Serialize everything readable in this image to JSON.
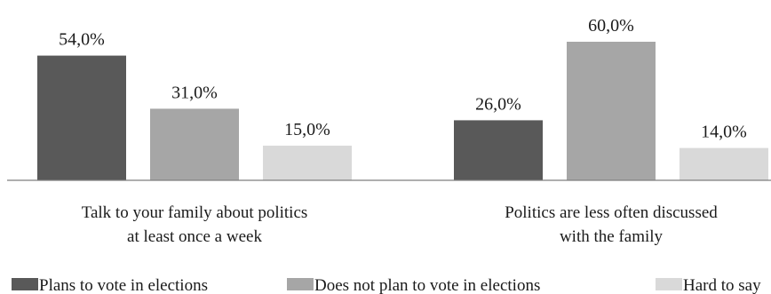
{
  "chart_data": {
    "type": "bar",
    "categories": [
      [
        "Talk to your family about politics",
        "at least once a week"
      ],
      [
        "Politics are less often discussed",
        "with the family"
      ]
    ],
    "series": [
      {
        "name": "Plans to vote in elections",
        "values": [
          54.0,
          26.0
        ],
        "labels": [
          "54,0%",
          "26,0%"
        ],
        "color": "#595959"
      },
      {
        "name": "Does not plan to vote in elections",
        "values": [
          31.0,
          60.0
        ],
        "labels": [
          "31,0%",
          "60,0%"
        ],
        "color": "#a6a6a6"
      },
      {
        "name": "Hard to say",
        "values": [
          15.0,
          14.0
        ],
        "labels": [
          "15,0%",
          "14,0%"
        ],
        "color": "#d9d9d9"
      }
    ],
    "ylim": [
      0,
      60
    ],
    "grid": false,
    "legend_position": "bottom"
  }
}
